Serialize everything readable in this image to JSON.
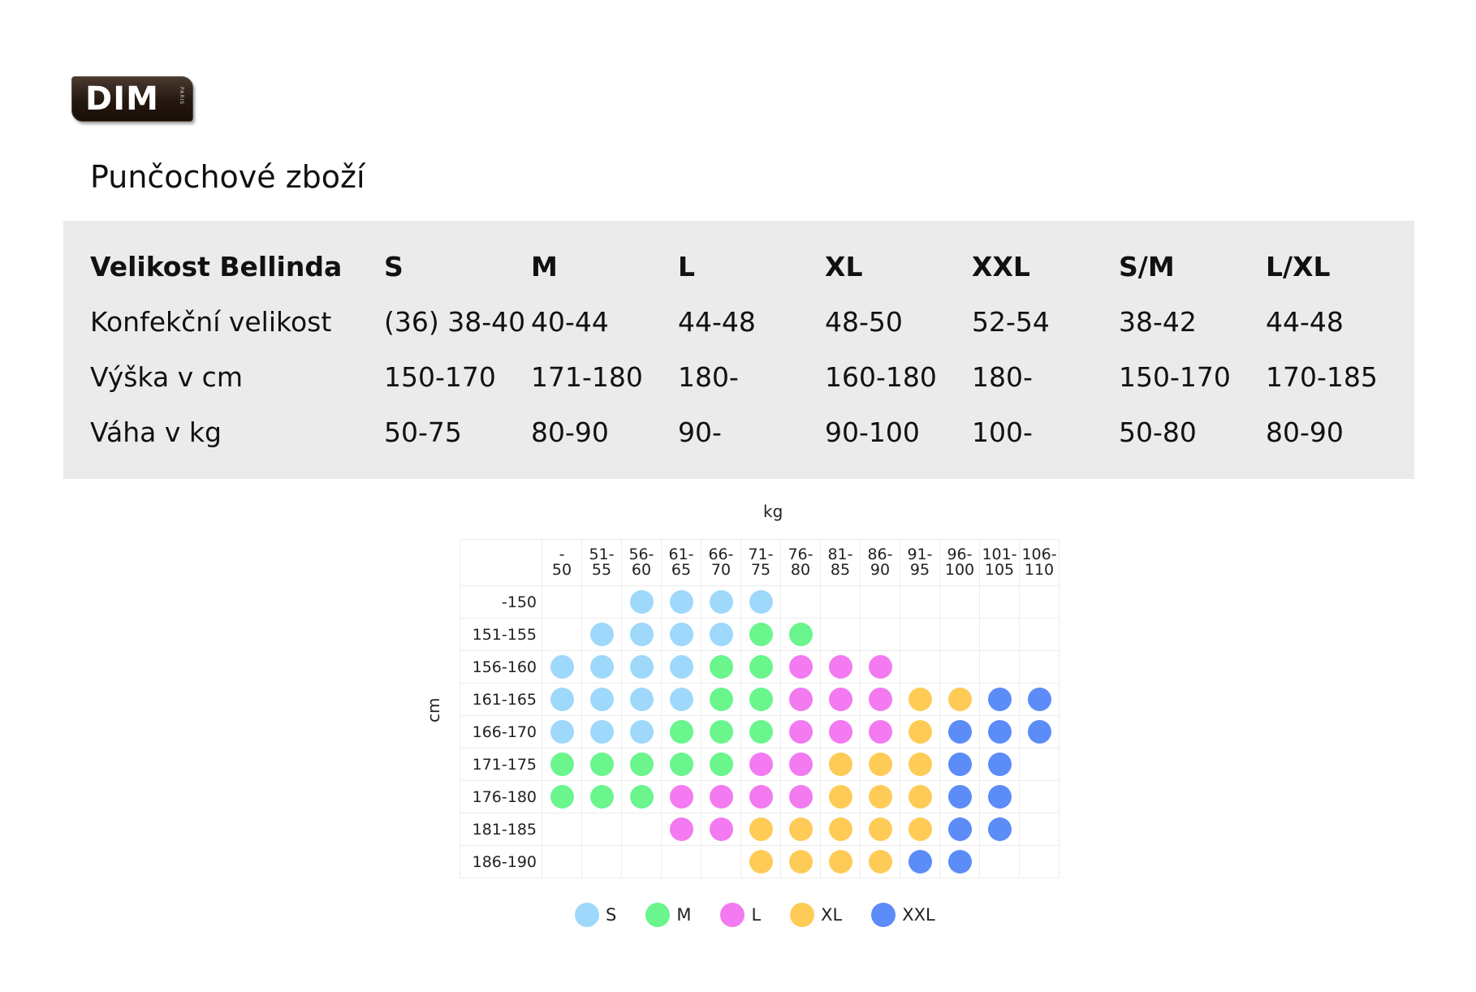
{
  "logo": {
    "text": "DIM",
    "sub": "PARIS"
  },
  "title": "Punčochové zboží",
  "size_table": {
    "rows": [
      {
        "label": "Velikost Bellinda",
        "values": [
          "S",
          "M",
          "L",
          "XL",
          "XXL",
          "S/M",
          "L/XL"
        ]
      },
      {
        "label": "Konfekční velikost",
        "values": [
          "(36) 38-40",
          "40-44",
          "44-48",
          "48-50",
          "52-54",
          "38-42",
          "44-48"
        ]
      },
      {
        "label": "Výška v cm",
        "values": [
          "150-170",
          "171-180",
          "180-",
          "160-180",
          "180-",
          "150-170",
          "170-185"
        ]
      },
      {
        "label": "Váha v kg",
        "values": [
          "50-75",
          "80-90",
          "90-",
          "90-100",
          "100-",
          "50-80",
          "80-90"
        ]
      }
    ]
  },
  "chart_data": {
    "type": "heatmap",
    "xlabel": "kg",
    "ylabel": "cm",
    "x_categories": [
      [
        "-",
        "50"
      ],
      [
        "51-",
        "55"
      ],
      [
        "56-",
        "60"
      ],
      [
        "61-",
        "65"
      ],
      [
        "66-",
        "70"
      ],
      [
        "71-",
        "75"
      ],
      [
        "76-",
        "80"
      ],
      [
        "81-",
        "85"
      ],
      [
        "86-",
        "90"
      ],
      [
        "91-",
        "95"
      ],
      [
        "96-",
        "100"
      ],
      [
        "101-",
        "105"
      ],
      [
        "106-",
        "110"
      ]
    ],
    "y_categories": [
      "-150",
      "151-155",
      "156-160",
      "161-165",
      "166-170",
      "171-175",
      "176-180",
      "181-185",
      "186-190"
    ],
    "legend": [
      {
        "key": "S",
        "label": "S",
        "color": "#9ed8fb"
      },
      {
        "key": "M",
        "label": "M",
        "color": "#6af58d"
      },
      {
        "key": "L",
        "label": "L",
        "color": "#f37af0"
      },
      {
        "key": "XL",
        "label": "XL",
        "color": "#ffcb57"
      },
      {
        "key": "XXL",
        "label": "XXL",
        "color": "#5b8cf7"
      }
    ],
    "cells": [
      [
        "",
        "",
        "S",
        "S",
        "S",
        "S",
        "",
        "",
        "",
        "",
        "",
        "",
        ""
      ],
      [
        "",
        "S",
        "S",
        "S",
        "S",
        "M",
        "M",
        "",
        "",
        "",
        "",
        "",
        ""
      ],
      [
        "S",
        "S",
        "S",
        "S",
        "M",
        "M",
        "L",
        "L",
        "L",
        "",
        "",
        "",
        ""
      ],
      [
        "S",
        "S",
        "S",
        "S",
        "M",
        "M",
        "L",
        "L",
        "L",
        "XL",
        "XL",
        "XXL",
        "XXL"
      ],
      [
        "S",
        "S",
        "S",
        "M",
        "M",
        "M",
        "L",
        "L",
        "L",
        "XL",
        "XXL",
        "XXL",
        "XXL"
      ],
      [
        "M",
        "M",
        "M",
        "M",
        "M",
        "L",
        "L",
        "XL",
        "XL",
        "XL",
        "XXL",
        "XXL",
        ""
      ],
      [
        "M",
        "M",
        "M",
        "L",
        "L",
        "L",
        "L",
        "XL",
        "XL",
        "XL",
        "XXL",
        "XXL",
        ""
      ],
      [
        "",
        "",
        "",
        "L",
        "L",
        "XL",
        "XL",
        "XL",
        "XL",
        "XL",
        "XXL",
        "XXL",
        ""
      ],
      [
        "",
        "",
        "",
        "",
        "",
        "XL",
        "XL",
        "XL",
        "XL",
        "XXL",
        "XXL",
        "",
        ""
      ]
    ]
  }
}
